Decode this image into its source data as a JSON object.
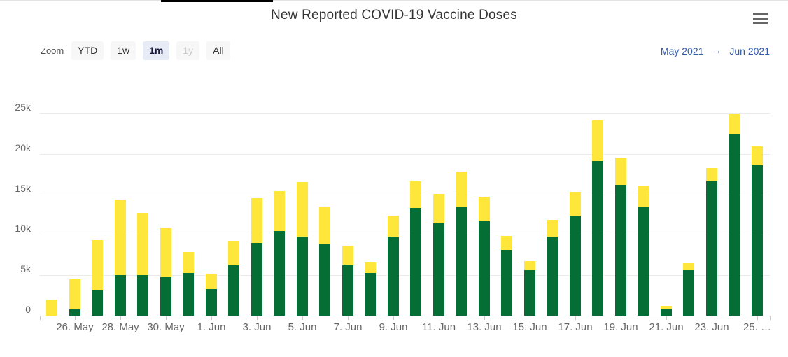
{
  "header": {
    "title": "New Reported COVID-19 Vaccine Doses"
  },
  "toolbar": {
    "zoom_label": "Zoom",
    "buttons": [
      {
        "label": "YTD",
        "state": "normal"
      },
      {
        "label": "1w",
        "state": "normal"
      },
      {
        "label": "1m",
        "state": "selected"
      },
      {
        "label": "1y",
        "state": "disabled"
      },
      {
        "label": "All",
        "state": "normal"
      }
    ]
  },
  "range_selector": {
    "from": "May 2021",
    "arrow": "→",
    "to": "Jun 2021"
  },
  "chart_data": {
    "type": "bar",
    "stacked": true,
    "title": "New Reported COVID-19 Vaccine Doses",
    "unit": "doses, values in thousands",
    "categories": [
      "25. May",
      "26. May",
      "27. May",
      "28. May",
      "29. May",
      "30. May",
      "31. May",
      "1. Jun",
      "2. Jun",
      "3. Jun",
      "4. Jun",
      "5. Jun",
      "6. Jun",
      "7. Jun",
      "8. Jun",
      "9. Jun",
      "10. Jun",
      "11. Jun",
      "12. Jun",
      "13. Jun",
      "14. Jun",
      "15. Jun",
      "16. Jun",
      "17. Jun",
      "18. Jun",
      "19. Jun",
      "20. Jun",
      "21. Jun",
      "22. Jun",
      "23. Jun",
      "24. Jun",
      "25. Jun"
    ],
    "series": [
      {
        "name": "green-bottom-series",
        "color": "#046e35",
        "values_k": [
          0,
          0.8,
          3.1,
          5.0,
          5.0,
          4.8,
          5.3,
          3.3,
          6.3,
          9.0,
          10.5,
          9.7,
          8.9,
          6.2,
          5.3,
          9.7,
          13.3,
          11.4,
          13.4,
          11.7,
          8.1,
          5.6,
          9.8,
          12.4,
          19.1,
          16.2,
          13.4,
          0.8,
          5.6,
          16.7,
          22.4,
          18.6
        ]
      },
      {
        "name": "yellow-top-series",
        "color": "#ffe63b",
        "values_k": [
          2.0,
          3.7,
          6.2,
          9.3,
          7.7,
          6.1,
          2.6,
          1.9,
          2.9,
          5.5,
          4.9,
          6.8,
          4.6,
          2.4,
          1.3,
          2.7,
          3.3,
          3.6,
          4.4,
          3.0,
          1.7,
          1.1,
          2.1,
          2.9,
          5.0,
          3.4,
          2.6,
          0.4,
          0.9,
          1.6,
          2.5,
          2.3
        ]
      }
    ],
    "x_tick_labels": [
      "26. May",
      "28. May",
      "30. May",
      "1. Jun",
      "3. Jun",
      "5. Jun",
      "7. Jun",
      "9. Jun",
      "11. Jun",
      "13. Jun",
      "15. Jun",
      "17. Jun",
      "19. Jun",
      "21. Jun",
      "23. Jun",
      "25. …"
    ],
    "y_tick_labels": [
      "0",
      "5k",
      "10k",
      "15k",
      "20k",
      "25k"
    ],
    "ylim_k": [
      0,
      25
    ],
    "grid": "horizontal",
    "legend": "none"
  }
}
